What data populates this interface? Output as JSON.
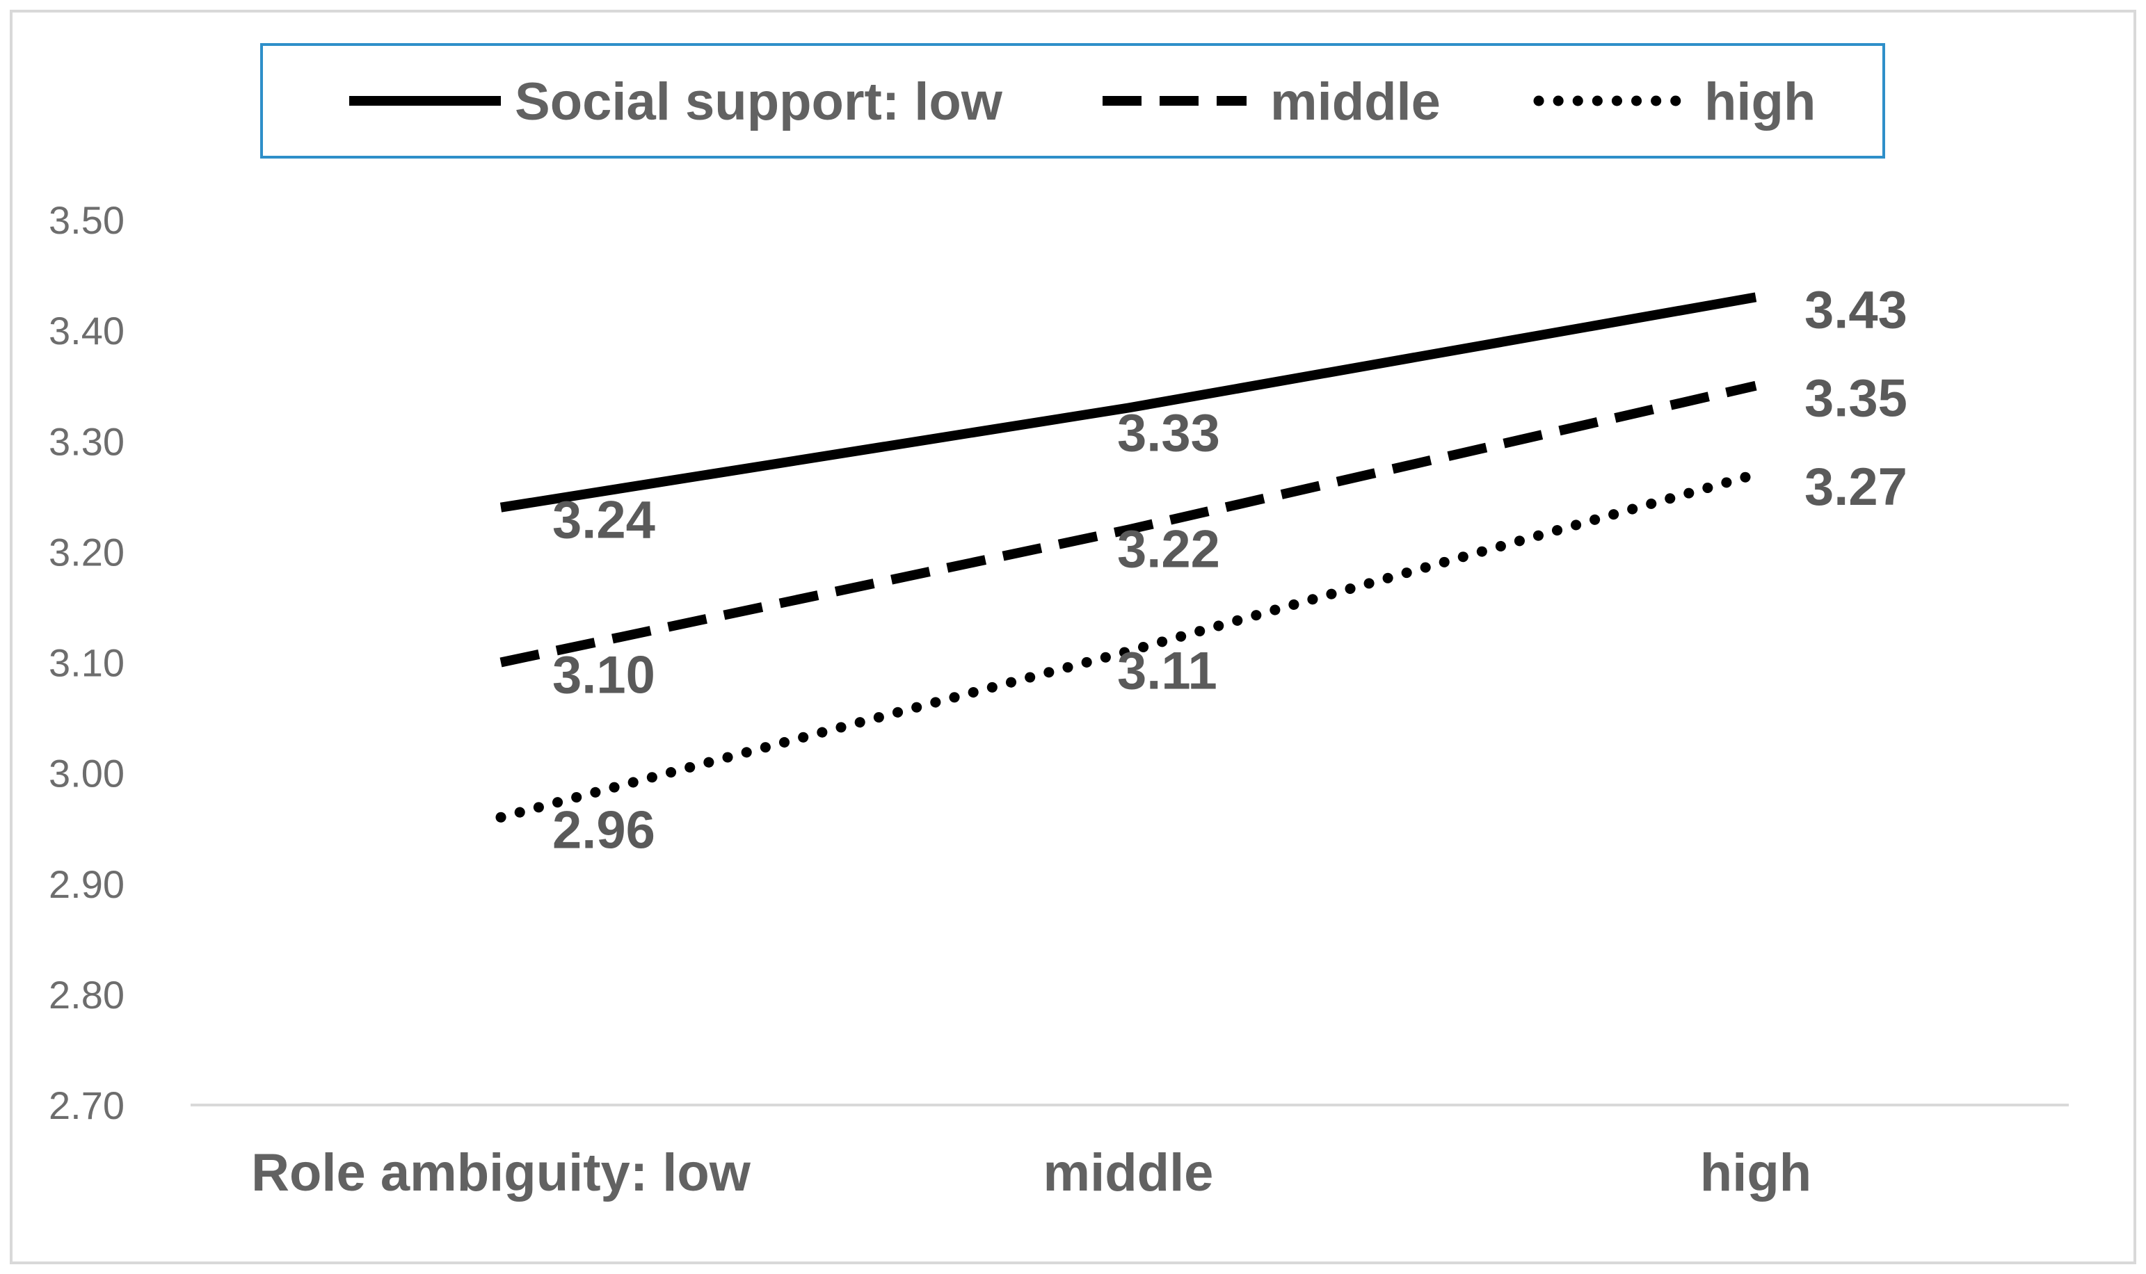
{
  "chart_data": {
    "type": "line",
    "categories": [
      "Role ambiguity: low",
      "middle",
      "high"
    ],
    "series": [
      {
        "name": "Social support: low",
        "values": [
          3.24,
          3.33,
          3.43
        ],
        "labels": [
          "3.24",
          "3.33",
          "3.43"
        ],
        "style": "solid"
      },
      {
        "name": "middle",
        "values": [
          3.1,
          3.22,
          3.35
        ],
        "labels": [
          "3.10",
          "3.22",
          "3.35"
        ],
        "style": "dashed"
      },
      {
        "name": "high",
        "values": [
          2.96,
          3.11,
          3.27
        ],
        "labels": [
          "2.96",
          "3.11",
          "3.27"
        ],
        "style": "dotted"
      }
    ],
    "y_ticks": [
      "2.70",
      "2.80",
      "2.90",
      "3.00",
      "3.10",
      "3.20",
      "3.30",
      "3.40",
      "3.50"
    ],
    "ylim": [
      2.7,
      3.5
    ],
    "grid": false,
    "legend_position": "top",
    "colors": {
      "line": "#000000",
      "legend_border": "#2e8fc9",
      "frame_border": "#d9d9d9",
      "axis": "#d9d9d9",
      "text": "#626262"
    }
  }
}
